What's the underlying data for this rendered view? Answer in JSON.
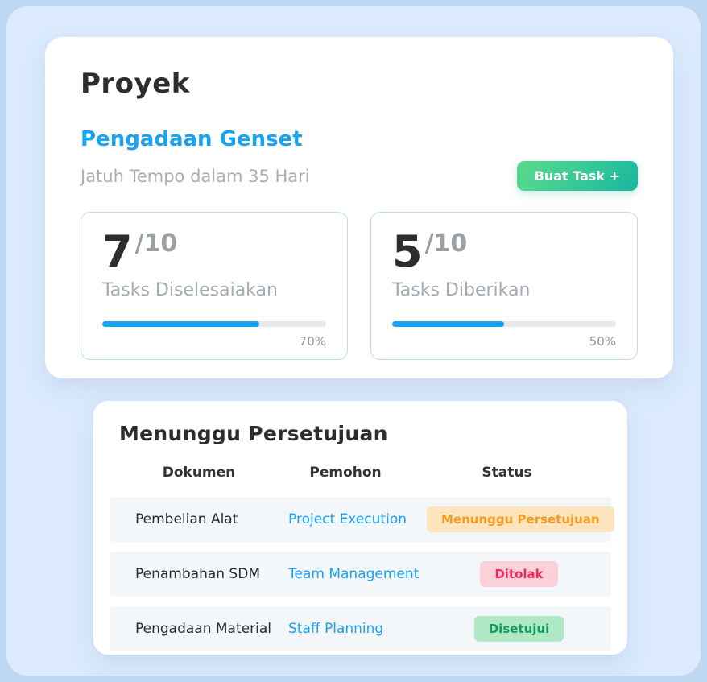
{
  "colors": {
    "background_outer": "#bed8f3",
    "background_inner": "#dbeafd",
    "accent_blue": "#18a0f3",
    "button_gradient_start": "#5bdb8b",
    "button_gradient_end": "#17b8a0",
    "badge_pending_bg": "#fce4bc",
    "badge_pending_text": "#f79b22",
    "badge_rejected_bg": "#fbd0d8",
    "badge_rejected_text": "#ea2a5c",
    "badge_approved_bg": "#aee8c5",
    "badge_approved_text": "#149c5b"
  },
  "project_card": {
    "title": "Proyek",
    "project_name": "Pengadaan Genset",
    "due_text": "Jatuh Tempo dalam 35 Hari",
    "create_task_button": "Buat Task +",
    "stats": [
      {
        "value": "7",
        "total": "/10",
        "label": "Tasks Diselesaiakan",
        "percent": 70,
        "percent_label": "70%"
      },
      {
        "value": "5",
        "total": "/10",
        "label": "Tasks Diberikan",
        "percent": 50,
        "percent_label": "50%"
      }
    ]
  },
  "approval_card": {
    "title": "Menunggu Persetujuan",
    "columns": [
      "Dokumen",
      "Pemohon",
      "Status"
    ],
    "rows": [
      {
        "dokumen": "Pembelian Alat",
        "pemohon": "Project Execution",
        "status": "Menunggu Persetujuan",
        "status_type": "pending"
      },
      {
        "dokumen": "Penambahan SDM",
        "pemohon": "Team Management",
        "status": "Ditolak",
        "status_type": "rejected"
      },
      {
        "dokumen": "Pengadaan Material",
        "pemohon": "Staff Planning",
        "status": "Disetujui",
        "status_type": "approved"
      }
    ]
  }
}
